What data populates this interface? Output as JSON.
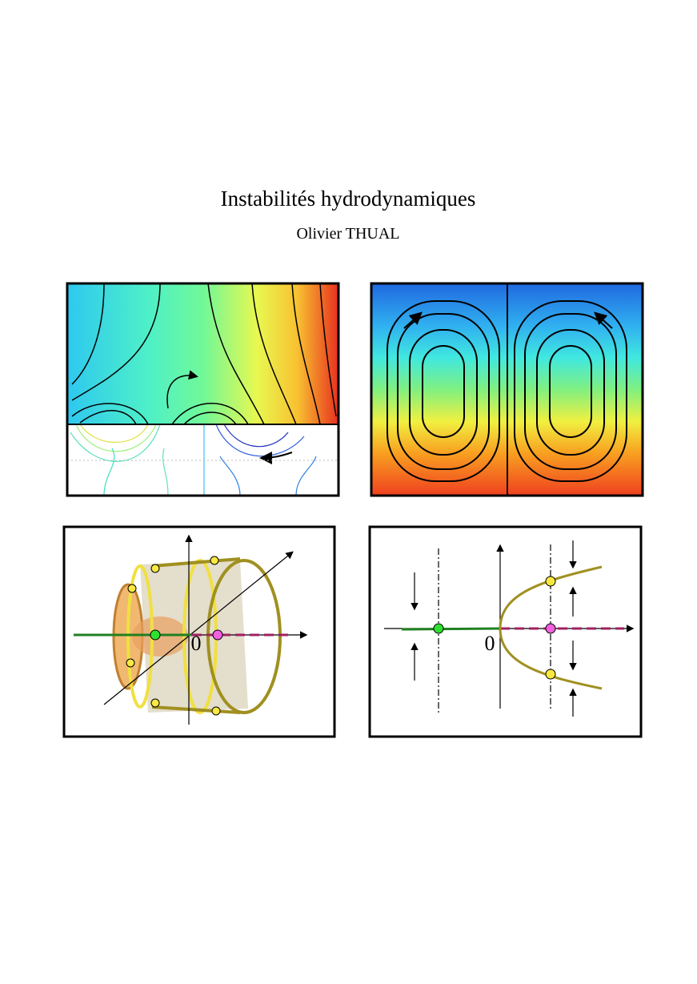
{
  "header": {
    "title": "Instabilités hydrodynamiques",
    "author": "Olivier THUAL"
  },
  "panels": {
    "bottom_left": {
      "origin_label": "0"
    },
    "bottom_right": {
      "origin_label": "0"
    }
  }
}
